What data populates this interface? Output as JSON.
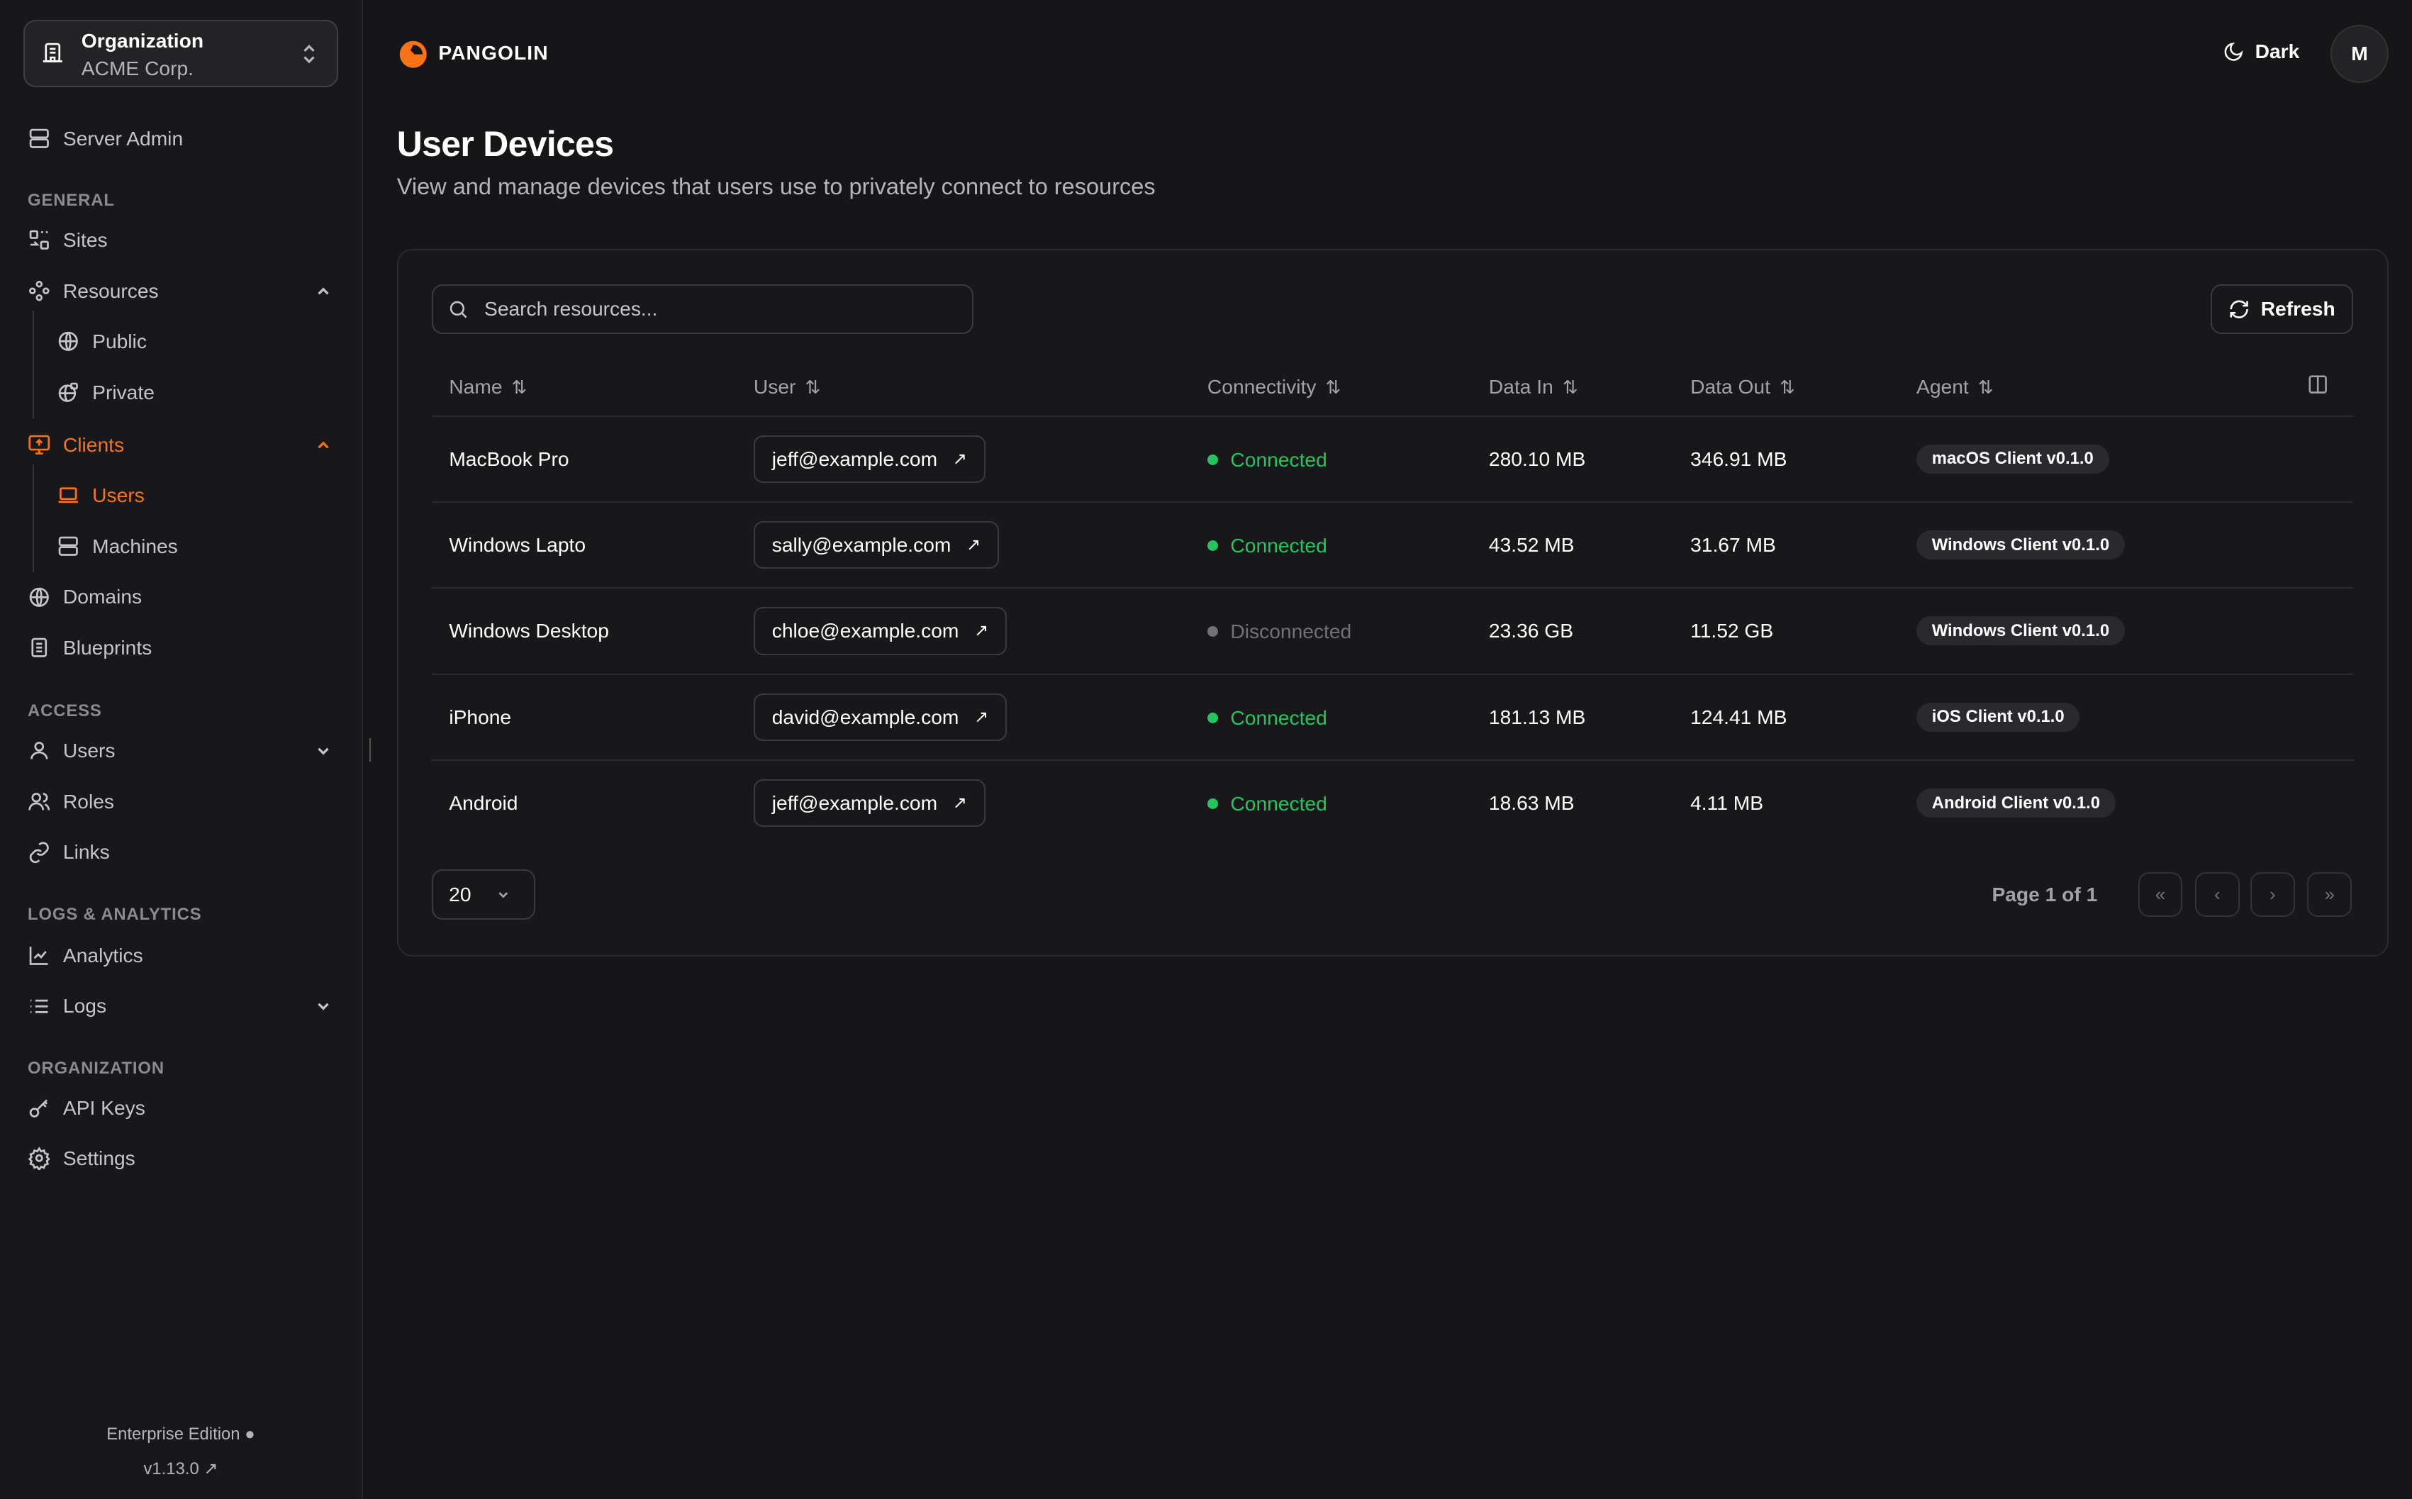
{
  "org": {
    "label": "Organization",
    "name": "ACME Corp."
  },
  "sidebar": {
    "server_admin": "Server Admin",
    "sections": {
      "general": "GENERAL",
      "access": "ACCESS",
      "logs": "LOGS & ANALYTICS",
      "organization": "ORGANIZATION"
    },
    "items": {
      "sites": "Sites",
      "resources": "Resources",
      "public": "Public",
      "private": "Private",
      "clients": "Clients",
      "users": "Users",
      "machines": "Machines",
      "domains": "Domains",
      "blueprints": "Blueprints",
      "access_users": "Users",
      "roles": "Roles",
      "links": "Links",
      "analytics": "Analytics",
      "logs": "Logs",
      "api_keys": "API Keys",
      "settings": "Settings"
    },
    "footer": {
      "edition": "Enterprise Edition",
      "version": "v1.13.0"
    }
  },
  "header": {
    "brand": "PANGOLIN",
    "theme": "Dark",
    "avatar": "M"
  },
  "page": {
    "title": "User Devices",
    "subtitle": "View and manage devices that users use to privately connect to resources"
  },
  "toolbar": {
    "search_placeholder": "Search resources...",
    "refresh": "Refresh"
  },
  "table": {
    "columns": [
      "Name",
      "User",
      "Connectivity",
      "Data In",
      "Data Out",
      "Agent"
    ],
    "rows": [
      {
        "name": "MacBook Pro",
        "user": "jeff@example.com",
        "status": "Connected",
        "data_in": "280.10 MB",
        "data_out": "346.91 MB",
        "agent": "macOS Client v0.1.0"
      },
      {
        "name": "Windows Lapto",
        "user": "sally@example.com",
        "status": "Connected",
        "data_in": "43.52 MB",
        "data_out": "31.67 MB",
        "agent": "Windows Client v0.1.0"
      },
      {
        "name": "Windows Desktop",
        "user": "chloe@example.com",
        "status": "Disconnected",
        "data_in": "23.36 GB",
        "data_out": "11.52 GB",
        "agent": "Windows Client v0.1.0"
      },
      {
        "name": "iPhone",
        "user": "david@example.com",
        "status": "Connected",
        "data_in": "181.13 MB",
        "data_out": "124.41 MB",
        "agent": "iOS Client v0.1.0"
      },
      {
        "name": "Android",
        "user": "jeff@example.com",
        "status": "Connected",
        "data_in": "18.63 MB",
        "data_out": "4.11 MB",
        "agent": "Android Client v0.1.0"
      }
    ]
  },
  "pagination": {
    "page_size": "20",
    "page_text": "Page 1 of 1"
  },
  "colors": {
    "accent": "#f97316",
    "connected": "#22c55e",
    "disconnected": "#71717a"
  }
}
